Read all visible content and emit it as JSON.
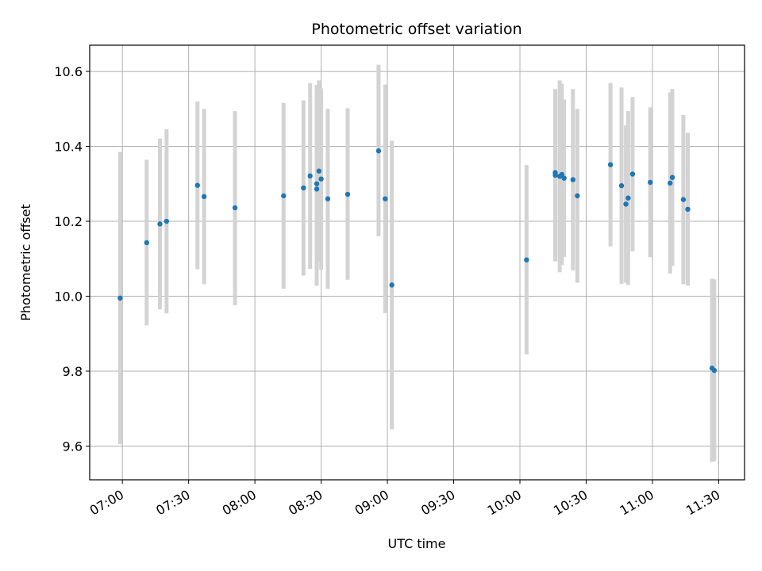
{
  "chart_data": {
    "type": "scatter",
    "title": "Photometric offset variation",
    "xlabel": "UTC time",
    "ylabel": "Photometric offset",
    "x_tick_labels": [
      "07:00",
      "07:30",
      "08:00",
      "08:30",
      "09:00",
      "09:30",
      "10:00",
      "10:30",
      "11:00",
      "11:30"
    ],
    "x_tick_minutes": [
      420,
      450,
      480,
      510,
      540,
      570,
      600,
      630,
      660,
      690
    ],
    "y_ticks": [
      9.6,
      9.8,
      10.0,
      10.2,
      10.4,
      10.6
    ],
    "y_tick_labels": [
      "9.6",
      "9.8",
      "10.0",
      "10.2",
      "10.4",
      "10.6"
    ],
    "xlim_minutes": [
      405.2,
      701.7
    ],
    "ylim": [
      9.51,
      10.67
    ],
    "grid": true,
    "colors": {
      "point": "#1f77b4",
      "errorbar": "#d3d3d3",
      "grid": "#b0b0b0"
    },
    "points": [
      {
        "t": "06:59",
        "y": 9.995,
        "lo": 9.605,
        "hi": 10.385
      },
      {
        "t": "07:11",
        "y": 10.143,
        "lo": 9.922,
        "hi": 10.364
      },
      {
        "t": "07:17",
        "y": 10.193,
        "lo": 9.965,
        "hi": 10.421
      },
      {
        "t": "07:20",
        "y": 10.2,
        "lo": 9.954,
        "hi": 10.446
      },
      {
        "t": "07:34",
        "y": 10.296,
        "lo": 10.072,
        "hi": 10.52
      },
      {
        "t": "07:37",
        "y": 10.266,
        "lo": 10.032,
        "hi": 10.5
      },
      {
        "t": "07:51",
        "y": 10.236,
        "lo": 9.976,
        "hi": 10.494
      },
      {
        "t": "08:13",
        "y": 10.268,
        "lo": 10.02,
        "hi": 10.516
      },
      {
        "t": "08:22",
        "y": 10.289,
        "lo": 10.055,
        "hi": 10.523
      },
      {
        "t": "08:25",
        "y": 10.321,
        "lo": 10.073,
        "hi": 10.569
      },
      {
        "t": "08:28",
        "y": 10.3,
        "lo": 10.054,
        "hi": 10.546
      },
      {
        "t": "08:28",
        "y": 10.286,
        "lo": 10.028,
        "hi": 10.564
      },
      {
        "t": "08:29",
        "y": 10.334,
        "lo": 10.092,
        "hi": 10.576
      },
      {
        "t": "08:30",
        "y": 10.313,
        "lo": 10.071,
        "hi": 10.555
      },
      {
        "t": "08:33",
        "y": 10.26,
        "lo": 10.02,
        "hi": 10.5
      },
      {
        "t": "08:42",
        "y": 10.272,
        "lo": 10.044,
        "hi": 10.502
      },
      {
        "t": "08:56",
        "y": 10.388,
        "lo": 10.16,
        "hi": 10.618
      },
      {
        "t": "08:59",
        "y": 10.26,
        "lo": 9.955,
        "hi": 10.565
      },
      {
        "t": "09:02",
        "y": 10.03,
        "lo": 9.645,
        "hi": 10.415
      },
      {
        "t": "10:03",
        "y": 10.097,
        "lo": 9.845,
        "hi": 10.35
      },
      {
        "t": "10:16",
        "y": 10.33,
        "lo": 10.109,
        "hi": 10.552
      },
      {
        "t": "10:16",
        "y": 10.323,
        "lo": 10.093,
        "hi": 10.553
      },
      {
        "t": "10:18",
        "y": 10.32,
        "lo": 10.064,
        "hi": 10.576
      },
      {
        "t": "10:19",
        "y": 10.325,
        "lo": 10.083,
        "hi": 10.567
      },
      {
        "t": "10:20",
        "y": 10.315,
        "lo": 10.105,
        "hi": 10.525
      },
      {
        "t": "10:24",
        "y": 10.311,
        "lo": 10.069,
        "hi": 10.553
      },
      {
        "t": "10:26",
        "y": 10.268,
        "lo": 10.036,
        "hi": 10.5
      },
      {
        "t": "10:41",
        "y": 10.351,
        "lo": 10.133,
        "hi": 10.569
      },
      {
        "t": "10:46",
        "y": 10.295,
        "lo": 10.033,
        "hi": 10.557
      },
      {
        "t": "10:48",
        "y": 10.246,
        "lo": 10.036,
        "hi": 10.456
      },
      {
        "t": "10:49",
        "y": 10.262,
        "lo": 10.03,
        "hi": 10.494
      },
      {
        "t": "10:51",
        "y": 10.326,
        "lo": 10.12,
        "hi": 10.532
      },
      {
        "t": "10:59",
        "y": 10.304,
        "lo": 10.104,
        "hi": 10.504
      },
      {
        "t": "11:08",
        "y": 10.302,
        "lo": 10.06,
        "hi": 10.544
      },
      {
        "t": "11:09",
        "y": 10.317,
        "lo": 10.081,
        "hi": 10.553
      },
      {
        "t": "11:14",
        "y": 10.258,
        "lo": 10.032,
        "hi": 10.484
      },
      {
        "t": "11:16",
        "y": 10.232,
        "lo": 10.028,
        "hi": 10.436
      },
      {
        "t": "11:27",
        "y": 9.808,
        "lo": 9.558,
        "hi": 10.047
      },
      {
        "t": "11:28",
        "y": 9.802,
        "lo": 9.56,
        "hi": 10.045
      }
    ]
  }
}
